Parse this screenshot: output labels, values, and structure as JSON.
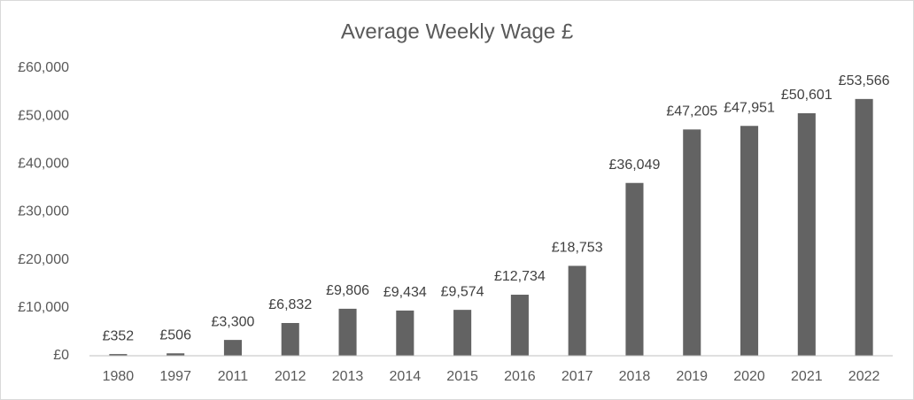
{
  "chart_data": {
    "type": "bar",
    "title": "Average Weekly Wage £",
    "categories": [
      "1980",
      "1997",
      "2011",
      "2012",
      "2013",
      "2014",
      "2015",
      "2016",
      "2017",
      "2018",
      "2019",
      "2020",
      "2021",
      "2022"
    ],
    "values": [
      352,
      506,
      3300,
      6832,
      9806,
      9434,
      9574,
      12734,
      18753,
      36049,
      47205,
      47951,
      50601,
      53566
    ],
    "value_labels": [
      "£352",
      "£506",
      "£3,300",
      "£6,832",
      "£9,806",
      "£9,434",
      "£9,574",
      "£12,734",
      "£18,753",
      "£36,049",
      "£47,205",
      "£47,951",
      "£50,601",
      "£53,566"
    ],
    "color": "#636363",
    "ylim": [
      0,
      60000
    ],
    "yticks": [
      {
        "value": 0,
        "label": "£0"
      },
      {
        "value": 10000,
        "label": "£10,000"
      },
      {
        "value": 20000,
        "label": "£20,000"
      },
      {
        "value": 30000,
        "label": "£30,000"
      },
      {
        "value": 40000,
        "label": "£40,000"
      },
      {
        "value": 50000,
        "label": "£50,000"
      },
      {
        "value": 60000,
        "label": "£60,000"
      }
    ],
    "grid": false
  }
}
